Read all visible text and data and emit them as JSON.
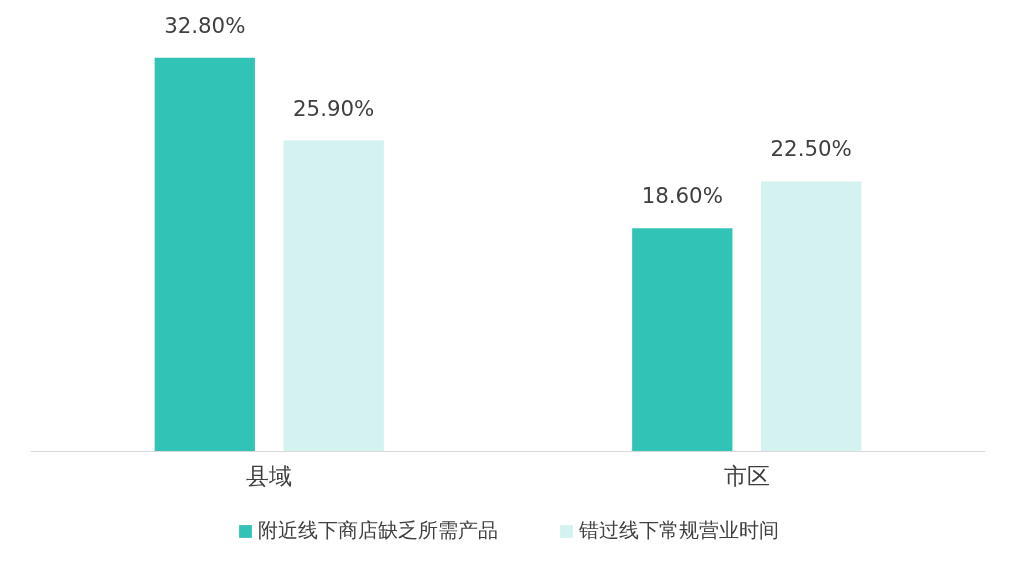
{
  "chart_data": {
    "type": "bar",
    "categories": [
      "县域",
      "市区"
    ],
    "series": [
      {
        "name": "附近线下商店缺乏所需产品",
        "color": "#31c3b5",
        "values": [
          32.8,
          18.6
        ],
        "value_labels": [
          "32.80%",
          "18.60%"
        ]
      },
      {
        "name": "错过线下常规营业时间",
        "color": "#d4f2ef",
        "values": [
          25.9,
          22.5
        ],
        "value_labels": [
          "25.90%",
          "22.50%"
        ]
      }
    ],
    "grid": false,
    "legend": "bottom"
  }
}
